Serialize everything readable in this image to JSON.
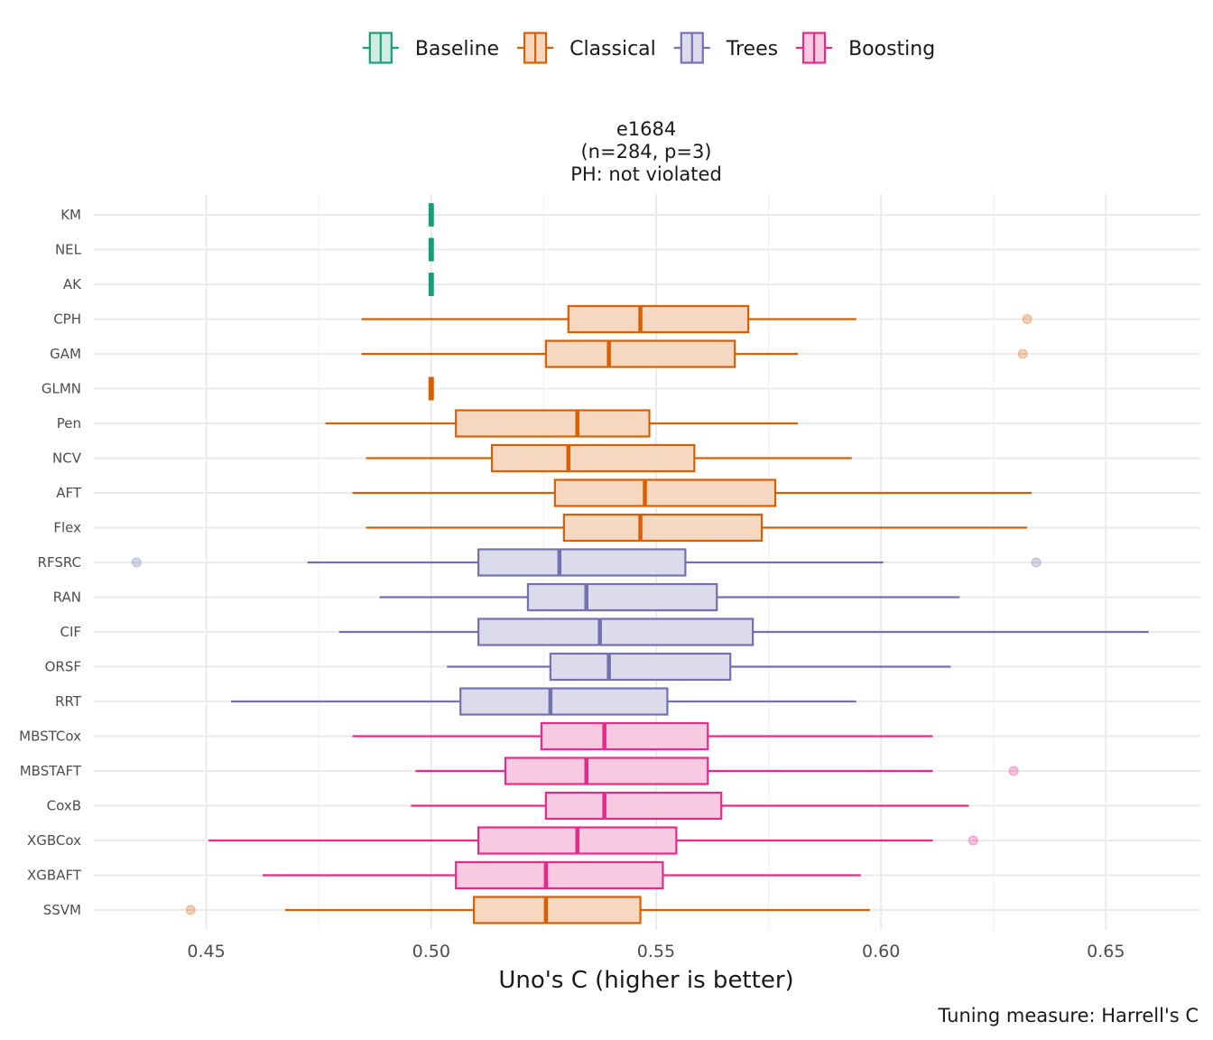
{
  "chart_data": {
    "type": "boxplot",
    "title_lines": [
      "e1684",
      "(n=284, p=3)",
      "PH: not violated"
    ],
    "xlabel": "Uno's C (higher is better)",
    "caption": "Tuning measure: Harrell's C",
    "xlim": [
      0.425,
      0.671
    ],
    "xticks": [
      0.45,
      0.5,
      0.55,
      0.6,
      0.65
    ],
    "xtick_labels": [
      "0.45",
      "0.50",
      "0.55",
      "0.60",
      "0.65"
    ],
    "grid": true,
    "legend_position": "top",
    "groups": [
      {
        "name": "Baseline",
        "color": "#1b9e77",
        "fill": "#d2ece4"
      },
      {
        "name": "Classical",
        "color": "#d95f02",
        "fill": "#f6d7c0"
      },
      {
        "name": "Trees",
        "color": "#7570b3",
        "fill": "#dcdbec"
      },
      {
        "name": "Boosting",
        "color": "#e7298a",
        "fill": "#f8cae2"
      }
    ],
    "series": [
      {
        "name": "KM",
        "group": "Baseline",
        "whisker_low": 0.5,
        "q1": 0.5,
        "median": 0.5,
        "q3": 0.5,
        "whisker_high": 0.5,
        "outliers": []
      },
      {
        "name": "NEL",
        "group": "Baseline",
        "whisker_low": 0.5,
        "q1": 0.5,
        "median": 0.5,
        "q3": 0.5,
        "whisker_high": 0.5,
        "outliers": []
      },
      {
        "name": "AK",
        "group": "Baseline",
        "whisker_low": 0.5,
        "q1": 0.5,
        "median": 0.5,
        "q3": 0.5,
        "whisker_high": 0.5,
        "outliers": []
      },
      {
        "name": "CPH",
        "group": "Classical",
        "whisker_low": 0.4845,
        "q1": 0.5305,
        "median": 0.5465,
        "q3": 0.5705,
        "whisker_high": 0.5945,
        "outliers": [
          0.6325
        ]
      },
      {
        "name": "GAM",
        "group": "Classical",
        "whisker_low": 0.4845,
        "q1": 0.5255,
        "median": 0.5395,
        "q3": 0.5675,
        "whisker_high": 0.5815,
        "outliers": [
          0.6315
        ]
      },
      {
        "name": "GLMN",
        "group": "Classical",
        "whisker_low": 0.5,
        "q1": 0.5,
        "median": 0.5,
        "q3": 0.5,
        "whisker_high": 0.5,
        "outliers": []
      },
      {
        "name": "Pen",
        "group": "Classical",
        "whisker_low": 0.4765,
        "q1": 0.5055,
        "median": 0.5325,
        "q3": 0.5485,
        "whisker_high": 0.5815,
        "outliers": []
      },
      {
        "name": "NCV",
        "group": "Classical",
        "whisker_low": 0.4855,
        "q1": 0.5135,
        "median": 0.5305,
        "q3": 0.5585,
        "whisker_high": 0.5935,
        "outliers": []
      },
      {
        "name": "AFT",
        "group": "Classical",
        "whisker_low": 0.4825,
        "q1": 0.5275,
        "median": 0.5475,
        "q3": 0.5765,
        "whisker_high": 0.6335,
        "outliers": []
      },
      {
        "name": "Flex",
        "group": "Classical",
        "whisker_low": 0.4855,
        "q1": 0.5295,
        "median": 0.5465,
        "q3": 0.5735,
        "whisker_high": 0.6325,
        "outliers": []
      },
      {
        "name": "RFSRC",
        "group": "Trees",
        "whisker_low": 0.4725,
        "q1": 0.5105,
        "median": 0.5285,
        "q3": 0.5565,
        "whisker_high": 0.6005,
        "outliers": [
          0.4345,
          0.6345
        ]
      },
      {
        "name": "RAN",
        "group": "Trees",
        "whisker_low": 0.4885,
        "q1": 0.5215,
        "median": 0.5345,
        "q3": 0.5635,
        "whisker_high": 0.6175,
        "outliers": []
      },
      {
        "name": "CIF",
        "group": "Trees",
        "whisker_low": 0.4795,
        "q1": 0.5105,
        "median": 0.5375,
        "q3": 0.5715,
        "whisker_high": 0.6595,
        "outliers": []
      },
      {
        "name": "ORSF",
        "group": "Trees",
        "whisker_low": 0.5035,
        "q1": 0.5265,
        "median": 0.5395,
        "q3": 0.5665,
        "whisker_high": 0.6155,
        "outliers": []
      },
      {
        "name": "RRT",
        "group": "Trees",
        "whisker_low": 0.4555,
        "q1": 0.5065,
        "median": 0.5265,
        "q3": 0.5525,
        "whisker_high": 0.5945,
        "outliers": []
      },
      {
        "name": "MBSTCox",
        "group": "Boosting",
        "whisker_low": 0.4825,
        "q1": 0.5245,
        "median": 0.5385,
        "q3": 0.5615,
        "whisker_high": 0.6115,
        "outliers": []
      },
      {
        "name": "MBSTAFT",
        "group": "Boosting",
        "whisker_low": 0.4965,
        "q1": 0.5165,
        "median": 0.5345,
        "q3": 0.5615,
        "whisker_high": 0.6115,
        "outliers": [
          0.6295
        ]
      },
      {
        "name": "CoxB",
        "group": "Boosting",
        "whisker_low": 0.4955,
        "q1": 0.5255,
        "median": 0.5385,
        "q3": 0.5645,
        "whisker_high": 0.6195,
        "outliers": []
      },
      {
        "name": "XGBCox",
        "group": "Boosting",
        "whisker_low": 0.4505,
        "q1": 0.5105,
        "median": 0.5325,
        "q3": 0.5545,
        "whisker_high": 0.6115,
        "outliers": [
          0.6205
        ]
      },
      {
        "name": "XGBAFT",
        "group": "Boosting",
        "whisker_low": 0.4625,
        "q1": 0.5055,
        "median": 0.5255,
        "q3": 0.5515,
        "whisker_high": 0.5955,
        "outliers": []
      },
      {
        "name": "SSVM",
        "group": "Classical",
        "whisker_low": 0.4675,
        "q1": 0.5095,
        "median": 0.5255,
        "q3": 0.5465,
        "whisker_high": 0.5975,
        "outliers": [
          0.4465
        ]
      }
    ]
  }
}
